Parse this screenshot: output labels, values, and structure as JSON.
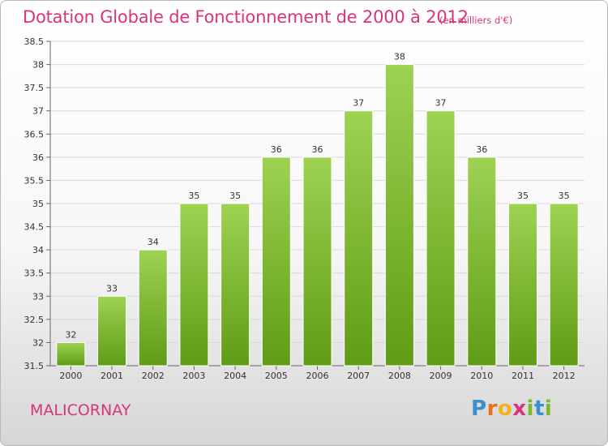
{
  "title": "Dotation Globale de Fonctionnement de 2000 à 2012",
  "unit_note": "(en milliers d'€)",
  "commune": "MALICORNAY",
  "logo": {
    "text": "Proxiti",
    "letters": [
      "P",
      "r",
      "o",
      "x",
      "i",
      "t",
      "i"
    ],
    "colors": [
      "#3a8fd0",
      "#e8731e",
      "#f2b21b",
      "#d9347b",
      "#7ab92e",
      "#3a8fd0",
      "#7ab92e"
    ]
  },
  "colors": {
    "title": "#d9347b",
    "bar_top": "#9ed253",
    "bar_bottom": "#5f9c16",
    "grid": "#d8d8d8"
  },
  "chart_data": {
    "type": "bar",
    "categories": [
      "2000",
      "2001",
      "2002",
      "2003",
      "2004",
      "2005",
      "2006",
      "2007",
      "2008",
      "2009",
      "2010",
      "2011",
      "2012"
    ],
    "values": [
      32,
      33,
      34,
      35,
      35,
      36,
      36,
      37,
      38,
      37,
      36,
      35,
      35
    ],
    "data_labels": [
      "32",
      "33",
      "34",
      "35",
      "35",
      "36",
      "36",
      "37",
      "38",
      "37",
      "36",
      "35",
      "35"
    ],
    "ylim": [
      31.5,
      38.5
    ],
    "yticks": [
      "31.5",
      "32",
      "32.5",
      "33",
      "33.5",
      "34",
      "34.5",
      "35",
      "35.5",
      "36",
      "36.5",
      "37",
      "37.5",
      "38",
      "38.5"
    ],
    "grid": true,
    "legend": "none"
  }
}
